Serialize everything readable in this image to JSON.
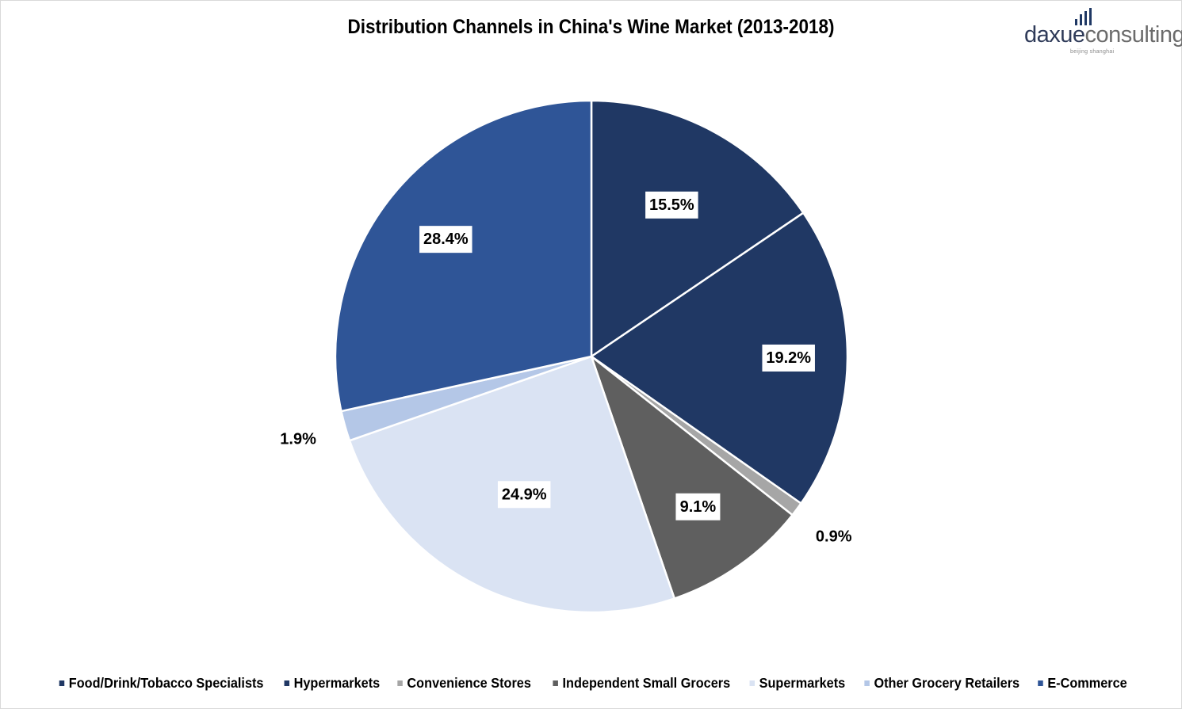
{
  "chart_data": {
    "type": "pie",
    "title": "Distribution Channels in China's Wine Market (2013-2018)",
    "slices": [
      {
        "name": "Food/Drink/Tobacco Specialists",
        "value": 15.5,
        "label": "15.5%",
        "color": "#203864"
      },
      {
        "name": "Hypermarkets",
        "value": 19.2,
        "label": "19.2%",
        "color": "#203864"
      },
      {
        "name": "Convenience Stores",
        "value": 0.9,
        "label": "0.9%",
        "color": "#a6a6a6"
      },
      {
        "name": "Independent Small Grocers",
        "value": 9.1,
        "label": "9.1%",
        "color": "#5f5f5f"
      },
      {
        "name": "Supermarkets",
        "value": 24.9,
        "label": "24.9%",
        "color": "#dae3f3"
      },
      {
        "name": "Other Grocery Retailers",
        "value": 1.9,
        "label": "1.9%",
        "color": "#b4c7e7"
      },
      {
        "name": "E-Commerce",
        "value": 28.4,
        "label": "28.4%",
        "color": "#2f5597"
      }
    ],
    "legend_position": "bottom"
  },
  "logo": {
    "part1": "daxue",
    "part2": "consulting",
    "tagline": "beijing shanghai"
  }
}
